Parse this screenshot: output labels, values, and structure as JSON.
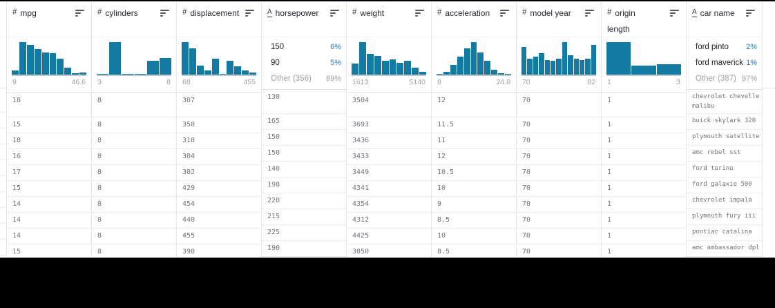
{
  "icons": {
    "number": "#",
    "text": "A"
  },
  "colors": {
    "bar": "#137aa4",
    "accent": "#1f87cf"
  },
  "table": {
    "columns": [
      {
        "type": "number",
        "label": "mpg",
        "sublabel": "",
        "summary": {
          "kind": "histogram",
          "min": "9",
          "max": "46.6",
          "bars": [
            0.13,
            1,
            0.92,
            0.79,
            0.68,
            0.66,
            0.49,
            0.22,
            0.05,
            0.07
          ]
        }
      },
      {
        "type": "number",
        "label": "cylinders",
        "sublabel": "",
        "summary": {
          "kind": "histogram",
          "min": "3",
          "max": "8",
          "bars": [
            0.03,
            1,
            0.02,
            0.02,
            0.42,
            0.52
          ]
        }
      },
      {
        "type": "number",
        "label": "displacement",
        "sublabel": "",
        "summary": {
          "kind": "histogram",
          "min": "68",
          "max": "455",
          "bars": [
            1,
            0.8,
            0.27,
            0.13,
            0.5,
            0.03,
            0.43,
            0.25,
            0.12,
            0.06
          ]
        }
      },
      {
        "type": "text",
        "label": "horsepower",
        "sublabel": "",
        "summary": {
          "kind": "topvalues",
          "items": [
            {
              "label": "150",
              "pct": "6%",
              "muted": false
            },
            {
              "label": "90",
              "pct": "5%",
              "muted": false
            },
            {
              "label": "Other (356)",
              "pct": "89%",
              "muted": true
            }
          ]
        }
      },
      {
        "type": "number",
        "label": "weight",
        "sublabel": "",
        "summary": {
          "kind": "histogram",
          "min": "1613",
          "max": "5140",
          "bars": [
            0.35,
            1,
            0.63,
            0.58,
            0.42,
            0.47,
            0.37,
            0.42,
            0.22,
            0.08
          ]
        }
      },
      {
        "type": "number",
        "label": "acceleration",
        "sublabel": "",
        "summary": {
          "kind": "histogram",
          "min": "8",
          "max": "24.8",
          "bars": [
            0.03,
            0.08,
            0.3,
            0.55,
            0.8,
            1,
            0.68,
            0.42,
            0.15,
            0.05,
            0.02
          ]
        }
      },
      {
        "type": "number",
        "label": "model year",
        "sublabel": "",
        "summary": {
          "kind": "histogram",
          "min": "70",
          "max": "82",
          "bars": [
            0.85,
            0.48,
            0.55,
            0.65,
            0.45,
            0.42,
            0.48,
            1,
            0.6,
            0.48,
            0.45,
            0.48,
            0.92
          ]
        }
      },
      {
        "type": "number",
        "label": "origin",
        "sublabel": "length",
        "summary": {
          "kind": "histogram",
          "min": "1",
          "max": "3",
          "bars": [
            1,
            0.27,
            0.31
          ]
        }
      },
      {
        "type": "text",
        "label": "car name",
        "sublabel": "",
        "summary": {
          "kind": "topvalues",
          "items": [
            {
              "label": "ford pinto",
              "pct": "2%",
              "muted": false
            },
            {
              "label": "ford maverick",
              "pct": "1%",
              "muted": false
            },
            {
              "label": "Other (387)",
              "pct": "97%",
              "muted": true
            }
          ]
        }
      }
    ],
    "rows": [
      [
        "18",
        "8",
        "307",
        "130",
        "3504",
        "12",
        "70",
        "1",
        "chevrolet chevelle malibu"
      ],
      [
        "15",
        "8",
        "350",
        "165",
        "3693",
        "11.5",
        "70",
        "1",
        "buick skylark 320"
      ],
      [
        "18",
        "8",
        "318",
        "150",
        "3436",
        "11",
        "70",
        "1",
        "plymouth satellite"
      ],
      [
        "16",
        "8",
        "304",
        "150",
        "3433",
        "12",
        "70",
        "1",
        "amc rebel sst"
      ],
      [
        "17",
        "8",
        "302",
        "140",
        "3449",
        "10.5",
        "70",
        "1",
        "ford torino"
      ],
      [
        "15",
        "8",
        "429",
        "198",
        "4341",
        "10",
        "70",
        "1",
        "ford galaxie 500"
      ],
      [
        "14",
        "8",
        "454",
        "220",
        "4354",
        "9",
        "70",
        "1",
        "chevrolet impala"
      ],
      [
        "14",
        "8",
        "440",
        "215",
        "4312",
        "8.5",
        "70",
        "1",
        "plymouth fury iii"
      ],
      [
        "14",
        "8",
        "455",
        "225",
        "4425",
        "10",
        "70",
        "1",
        "pontiac catalina"
      ],
      [
        "15",
        "8",
        "390",
        "190",
        "3850",
        "8.5",
        "70",
        "1",
        "amc ambassador dpl"
      ]
    ]
  }
}
